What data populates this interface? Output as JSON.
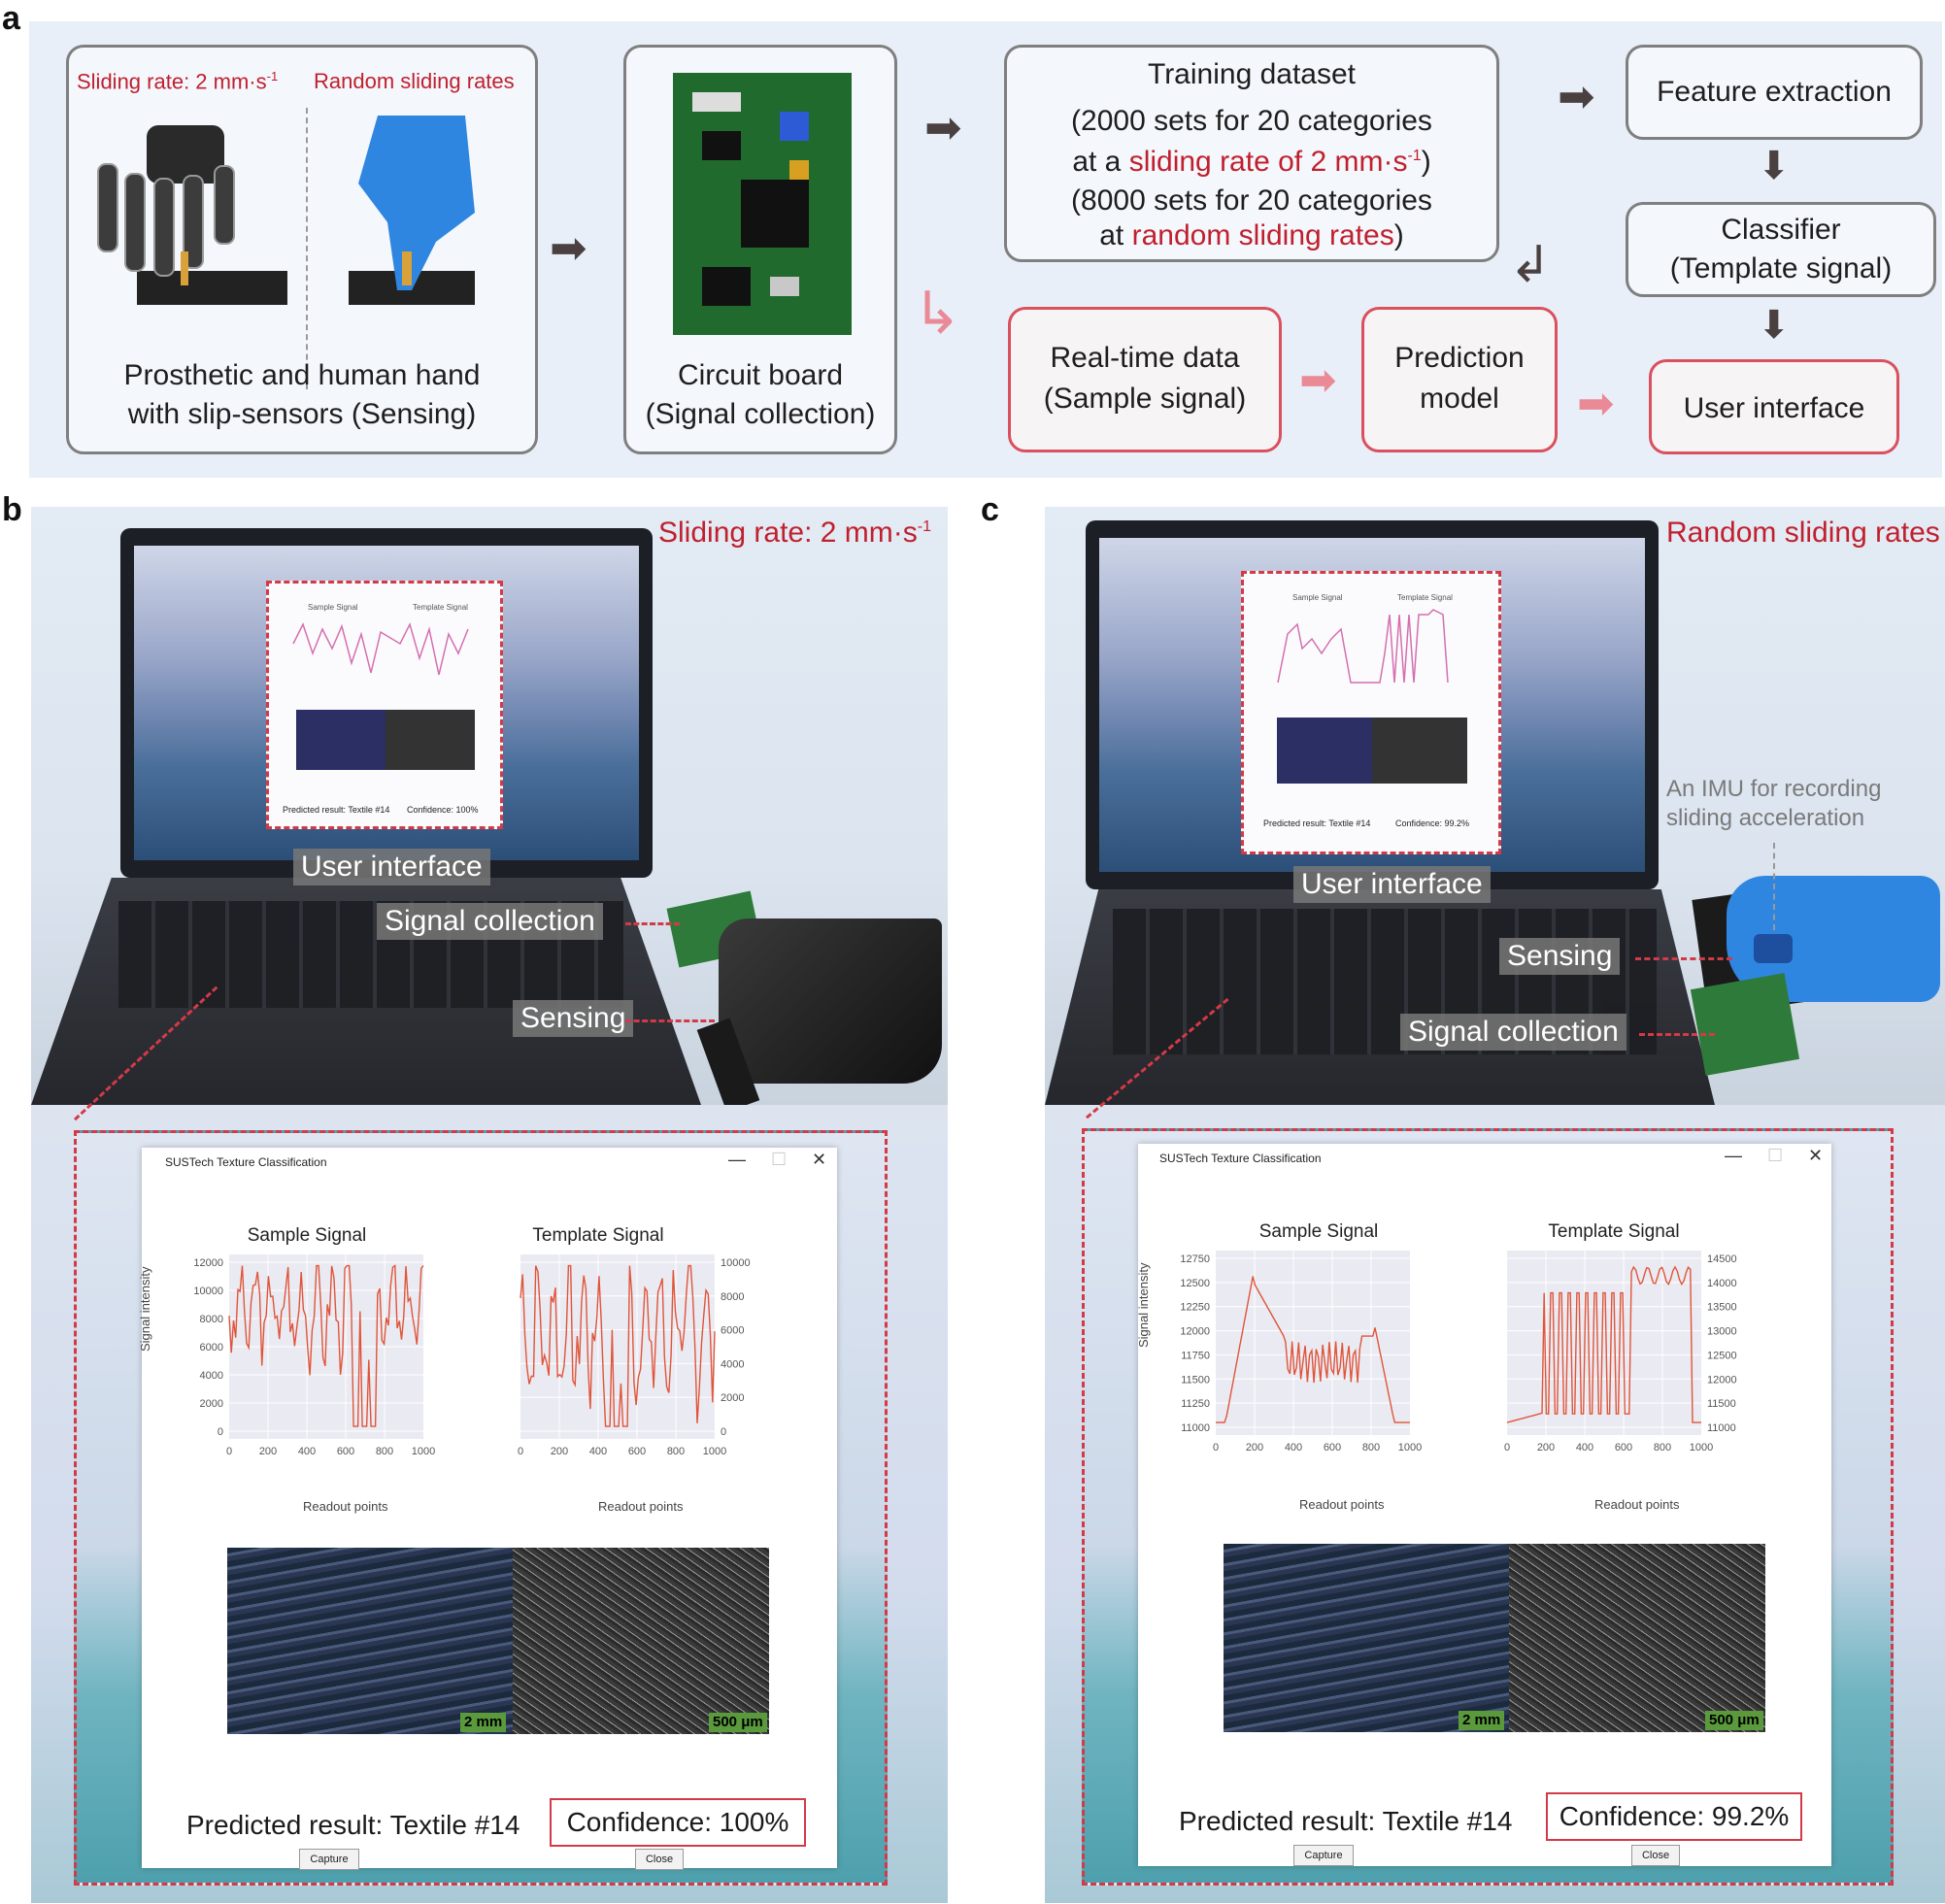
{
  "panel_labels": {
    "a": "a",
    "b": "b",
    "c": "c"
  },
  "panel_a": {
    "sensing_box": {
      "left_caption": "Sliding rate: 2 mm·s",
      "left_caption_sup": "-1",
      "right_caption": "Random sliding rates",
      "line1": "Prosthetic and human hand",
      "line2": "with slip-sensors (Sensing)"
    },
    "circuit_box": {
      "line1": "Circuit board",
      "line2": "(Signal collection)"
    },
    "training_box": {
      "title": "Training dataset",
      "l1": "(2000 sets for 20 categories",
      "l2_pre": "at a ",
      "l2_red": "sliding rate of 2 mm·s",
      "l2_sup": "-1",
      "l2_post": ")",
      "l3": "(8000 sets for 20 categories",
      "l4_pre": "at ",
      "l4_red": "random sliding rates",
      "l4_post": ")"
    },
    "feature_box": "Feature extraction",
    "classifier_box": {
      "line1": "Classifier",
      "line2": "(Template signal)"
    },
    "realtime_box": {
      "line1": "Real-time data",
      "line2": "(Sample signal)"
    },
    "prediction_box": {
      "line1": "Prediction",
      "line2": "model"
    },
    "ui_box": "User interface"
  },
  "panel_b": {
    "caption": "Sliding rate: 2 mm·s",
    "caption_sup": "-1",
    "callouts": {
      "ui": "User interface",
      "signal": "Signal collection",
      "sensing": "Sensing"
    },
    "mini_ui": {
      "sample": "Sample Signal",
      "template": "Template Signal",
      "result": "Predicted result: Textile #14",
      "conf": "Confidence: 100%"
    },
    "window": {
      "title": "SUSTech Texture Classification",
      "sample_title": "Sample Signal",
      "template_title": "Template Signal",
      "ylabel": "Signal intensity",
      "xlabel": "Readout points",
      "left_yticks": [
        "12000",
        "10000",
        "8000",
        "6000",
        "4000",
        "2000",
        "0"
      ],
      "right_yticks": [
        "10000",
        "8000",
        "6000",
        "4000",
        "2000",
        "0"
      ],
      "xticks": [
        "0",
        "200",
        "400",
        "600",
        "800",
        "1000"
      ],
      "scale_left": "2 mm",
      "scale_right": "500 μm",
      "result": "Predicted result: Textile #14",
      "confidence": "Confidence: 100%",
      "capture": "Capture",
      "close": "Close"
    }
  },
  "panel_c": {
    "caption": "Random sliding rates",
    "imu_note_1": "An IMU for recording",
    "imu_note_2": "sliding acceleration",
    "callouts": {
      "ui": "User interface",
      "signal": "Signal collection",
      "sensing": "Sensing"
    },
    "mini_ui": {
      "sample": "Sample Signal",
      "template": "Template Signal",
      "result": "Predicted result: Textile #14",
      "conf": "Confidence: 99.2%"
    },
    "window": {
      "title": "SUSTech Texture Classification",
      "sample_title": "Sample Signal",
      "template_title": "Template Signal",
      "ylabel": "Signal intensity",
      "xlabel": "Readout points",
      "left_yticks": [
        "12750",
        "12500",
        "12250",
        "12000",
        "11750",
        "11500",
        "11250",
        "11000"
      ],
      "right_yticks": [
        "14500",
        "14000",
        "13500",
        "13000",
        "12500",
        "12000",
        "11500",
        "11000"
      ],
      "xticks": [
        "0",
        "200",
        "400",
        "600",
        "800",
        "1000"
      ],
      "scale_left": "2 mm",
      "scale_right": "500 μm",
      "result": "Predicted result: Textile #14",
      "confidence": "Confidence: 99.2%",
      "capture": "Capture",
      "close": "Close"
    }
  },
  "colors": {
    "accent_red": "#c0202e",
    "signal_line": "#e0553a",
    "dash_red": "#d33a48"
  }
}
